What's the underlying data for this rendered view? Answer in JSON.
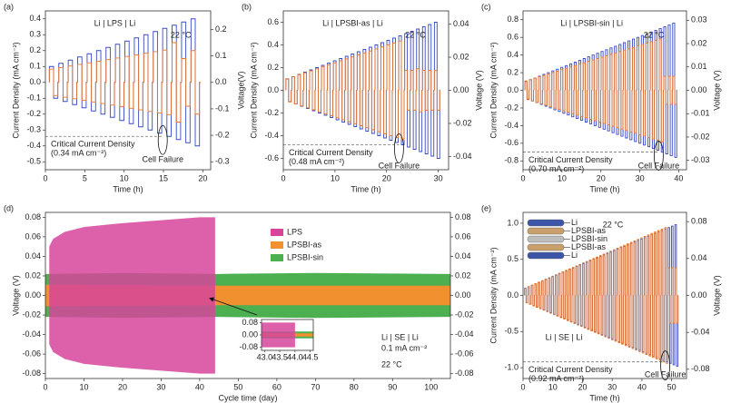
{
  "chart_data": [
    {
      "type": "line",
      "panel_label": "(a)",
      "title": "Li | LPS | Li",
      "temperature": "22 °C",
      "x_label": "Time (h)",
      "y_label": "Current Density (mA cm⁻²)",
      "y2_label": "Voltage(V)",
      "annotations": [
        "Critical Current Density",
        "(0.34 mA cm⁻²)",
        "Cell Failure"
      ],
      "reference_line": -0.34,
      "x": [
        0.5,
        1.7,
        2.9,
        4.1,
        5.3,
        6.5,
        7.7,
        8.9,
        10.1,
        11.3,
        12.5,
        13.7,
        14.9,
        16.1,
        17.3,
        18.5
      ],
      "series": [
        {
          "color": "#3949c4",
          "values": [
            0.1,
            0.12,
            0.14,
            0.16,
            0.18,
            0.2,
            0.22,
            0.24,
            0.26,
            0.28,
            0.3,
            0.32,
            0.34,
            0.36,
            0.38,
            0.4
          ]
        },
        {
          "color": "#e8762c",
          "axis": "y2",
          "values": [
            0.05,
            0.056,
            0.062,
            0.068,
            0.074,
            0.08,
            0.086,
            0.092,
            0.098,
            0.104,
            0.11,
            0.116,
            0.122,
            0.15,
            0.09,
            0.12
          ]
        }
      ],
      "xlim": [
        0,
        21
      ],
      "xticks": [
        0,
        5,
        10,
        15,
        20
      ],
      "ylim": [
        -0.55,
        0.45
      ],
      "yticks": [
        -0.5,
        -0.4,
        -0.3,
        -0.2,
        -0.1,
        {
          "value": 0,
          "label": "0.0"
        },
        0.1,
        0.2,
        0.3,
        0.4
      ],
      "y2lim": [
        -0.33,
        0.27
      ],
      "y2ticks": [
        -0.3,
        -0.2,
        -0.1,
        {
          "value": 0,
          "label": "0.0"
        },
        0.1,
        0.2
      ]
    },
    {
      "type": "line",
      "panel_label": "(b)",
      "title": "Li | LPSBI-as | Li",
      "temperature": "22 °C",
      "x_label": "Time (h)",
      "y_label": "Current Density (mA cm⁻²)",
      "y2_label": "Voltage (V)",
      "annotations": [
        "Critical Current Density",
        "(0.48 mA cm⁻²)",
        "Cell Failure"
      ],
      "reference_line": -0.48,
      "x": [
        0.5,
        1.65,
        2.8,
        3.95,
        5.1,
        6.25,
        7.4,
        8.55,
        9.7,
        10.85,
        12,
        13.15,
        14.3,
        15.45,
        16.6,
        17.75,
        18.9,
        20.05,
        21.2,
        22.35,
        23.5,
        24.65,
        25.8,
        26.95,
        28.1,
        29.25
      ],
      "series": [
        {
          "color": "#3949c4",
          "values": [
            0.1,
            0.12,
            0.14,
            0.16,
            0.18,
            0.2,
            0.22,
            0.24,
            0.26,
            0.28,
            0.3,
            0.32,
            0.34,
            0.36,
            0.38,
            0.4,
            0.42,
            0.44,
            0.46,
            0.48,
            0.5,
            0.52,
            0.54,
            0.56,
            0.58,
            0.6
          ]
        },
        {
          "color": "#e8762c",
          "axis": "y2",
          "values": [
            0.007,
            0.0082,
            0.0094,
            0.0106,
            0.0118,
            0.013,
            0.0142,
            0.0154,
            0.0166,
            0.0178,
            0.019,
            0.0202,
            0.0214,
            0.0226,
            0.0238,
            0.025,
            0.0262,
            0.0274,
            0.0286,
            0.0298,
            0.012,
            0.012,
            0.013,
            0.012,
            0.012,
            0.012
          ]
        }
      ],
      "xlim": [
        0,
        32
      ],
      "xticks": [
        0,
        10,
        20,
        30
      ],
      "ylim": [
        -0.7,
        0.7
      ],
      "yticks": [
        -0.6,
        -0.4,
        -0.2,
        {
          "value": 0,
          "label": "0.0"
        },
        0.2,
        0.4,
        0.6
      ],
      "y2lim": [
        -0.048,
        0.048
      ],
      "y2ticks": [
        -0.04,
        -0.02,
        {
          "value": 0,
          "label": "0.00"
        },
        0.02,
        0.04
      ]
    },
    {
      "type": "line",
      "panel_label": "(c)",
      "title": "Li | LPSBI-sin | Li",
      "temperature": "22 °C",
      "x_label": "Time (h)",
      "y_label": "Current Density (mA cm⁻²)",
      "y2_label": "Voltage (V)",
      "annotations": [
        "Critical Current Density",
        "(0.70 mA cm⁻²)",
        "Cell Failure"
      ],
      "reference_line": -0.7,
      "x": [
        0.5,
        1.65,
        2.8,
        3.95,
        5.1,
        6.25,
        7.4,
        8.55,
        9.7,
        10.85,
        12,
        13.15,
        14.3,
        15.45,
        16.6,
        17.75,
        18.9,
        20.05,
        21.2,
        22.35,
        23.5,
        24.65,
        25.8,
        26.95,
        28.1,
        29.25,
        30.4,
        31.55,
        32.7,
        33.85,
        35,
        36.15,
        37.3,
        38.45
      ],
      "series": [
        {
          "color": "#3949c4",
          "values": [
            0.1,
            0.12,
            0.14,
            0.16,
            0.18,
            0.2,
            0.22,
            0.24,
            0.26,
            0.28,
            0.3,
            0.32,
            0.34,
            0.36,
            0.38,
            0.4,
            0.42,
            0.44,
            0.46,
            0.48,
            0.5,
            0.52,
            0.54,
            0.56,
            0.58,
            0.6,
            0.62,
            0.64,
            0.66,
            0.68,
            0.7,
            0.72,
            0.74,
            0.76
          ]
        },
        {
          "color": "#e8762c",
          "axis": "y2",
          "values": [
            0.004,
            0.0046,
            0.0052,
            0.0058,
            0.0064,
            0.007,
            0.0076,
            0.0082,
            0.0088,
            0.0094,
            0.01,
            0.0106,
            0.0112,
            0.0118,
            0.0124,
            0.013,
            0.0136,
            0.0142,
            0.0148,
            0.0154,
            0.016,
            0.0166,
            0.0172,
            0.0178,
            0.0184,
            0.019,
            0.0196,
            0.0202,
            0.0208,
            0.0214,
            0.022,
            0.006,
            0.006,
            0.006
          ]
        }
      ],
      "xlim": [
        0,
        42
      ],
      "xticks": [
        0,
        10,
        20,
        30,
        40
      ],
      "ylim": [
        -0.9,
        0.9
      ],
      "yticks": [
        -0.8,
        -0.6,
        -0.4,
        -0.2,
        {
          "value": 0,
          "label": "0.0"
        },
        0.2,
        0.4,
        0.6,
        0.8
      ],
      "y2lim": [
        -0.034,
        0.034
      ],
      "y2ticks": [
        -0.03,
        -0.02,
        -0.01,
        {
          "value": 0,
          "label": "0.00"
        },
        0.01,
        0.02,
        0.03
      ]
    },
    {
      "type": "area",
      "panel_label": "(d)",
      "x_label": "Cycle time (day)",
      "y_label": "Voltage (V)",
      "annotations": [
        "Li | SE | Li",
        "0.1 mA cm⁻²",
        "22 °C"
      ],
      "series": [
        {
          "name": "LPSBI-sin",
          "color": "#4caf50",
          "x": [
            0,
            20,
            45,
            70,
            105
          ],
          "values": [
            0.022,
            0.023,
            0.022,
            0.023,
            0.022
          ]
        },
        {
          "name": "LPSBI-as",
          "color": "#f0902f",
          "x": [
            0,
            45,
            105
          ],
          "values": [
            0.011,
            0.01,
            0.01
          ]
        },
        {
          "name": "LPS",
          "color": "#d6459b",
          "x": [
            1,
            2,
            5,
            10,
            20,
            30,
            40,
            44
          ],
          "values": [
            0.05,
            0.058,
            0.065,
            0.07,
            0.074,
            0.077,
            0.08,
            0.08
          ]
        }
      ],
      "xlim": [
        0,
        105
      ],
      "xticks": [
        0,
        10,
        20,
        30,
        40,
        50,
        60,
        70,
        80,
        90,
        100
      ],
      "ylim": [
        -0.085,
        0.085
      ],
      "yticks": [
        -0.08,
        -0.06,
        -0.04,
        -0.02,
        {
          "value": 0,
          "label": "0.00"
        },
        0.02,
        0.04,
        0.06,
        0.08
      ],
      "y2lim": [
        -0.085,
        0.085
      ],
      "y2ticks": [
        -0.08,
        -0.06,
        -0.04,
        -0.02,
        {
          "value": 0,
          "label": "0.00"
        },
        0.02,
        0.04,
        0.06,
        0.08
      ],
      "inset": {
        "xlim": [
          42.9,
          44.6
        ],
        "xticks": [
          {
            "value": 43,
            "label": "43.0"
          },
          43.5,
          {
            "value": 44,
            "label": "44.0"
          },
          44.5
        ],
        "ylim": [
          -0.1,
          0.1
        ],
        "yticks": [
          -0.08,
          {
            "value": 0,
            "label": "0.00"
          },
          0.08
        ]
      }
    },
    {
      "type": "line",
      "panel_label": "(e)",
      "title": "Li | SE | Li",
      "temperature": "22 °C",
      "x_label": "Time (h)",
      "y_label": "Current Density (mA cm⁻²)",
      "y2_label": "Voltage (V)",
      "annotations": [
        "Critical Current Density",
        "(0.92 mA cm⁻²)",
        "Cell Failure"
      ],
      "reference_line": -0.92,
      "schematic_labels": [
        "Li",
        "LPSBI-as",
        "LPSBI-sin",
        "LPSBI-as",
        "Li"
      ],
      "x": [
        0.5,
        1.65,
        2.8,
        3.95,
        5.1,
        6.25,
        7.4,
        8.55,
        9.7,
        10.85,
        12,
        13.15,
        14.3,
        15.45,
        16.6,
        17.75,
        18.9,
        20.05,
        21.2,
        22.35,
        23.5,
        24.65,
        25.8,
        26.95,
        28.1,
        29.25,
        30.4,
        31.55,
        32.7,
        33.85,
        35,
        36.15,
        37.3,
        38.45,
        39.6,
        40.75,
        41.9,
        43.05,
        44.2,
        45.35,
        46.5,
        47.65,
        48.8,
        49.95,
        51.1
      ],
      "series": [
        {
          "color": "#3949c4",
          "values": [
            0.1,
            0.12,
            0.14,
            0.16,
            0.18,
            0.2,
            0.22,
            0.24,
            0.26,
            0.28,
            0.3,
            0.32,
            0.34,
            0.36,
            0.38,
            0.4,
            0.42,
            0.44,
            0.46,
            0.48,
            0.5,
            0.52,
            0.54,
            0.56,
            0.58,
            0.6,
            0.62,
            0.64,
            0.66,
            0.68,
            0.7,
            0.72,
            0.74,
            0.76,
            0.78,
            0.8,
            0.82,
            0.84,
            0.86,
            0.88,
            0.9,
            0.92,
            0.94,
            0.96,
            0.98
          ]
        },
        {
          "color": "#e8762c",
          "axis": "y2",
          "values": [
            0.008,
            0.0096,
            0.0112,
            0.0128,
            0.0144,
            0.016,
            0.0176,
            0.0192,
            0.0208,
            0.0224,
            0.024,
            0.0256,
            0.0272,
            0.0288,
            0.0304,
            0.032,
            0.0336,
            0.0352,
            0.0368,
            0.0384,
            0.04,
            0.0416,
            0.0432,
            0.0448,
            0.0464,
            0.048,
            0.0496,
            0.0512,
            0.0528,
            0.0544,
            0.056,
            0.0576,
            0.0592,
            0.0608,
            0.0624,
            0.064,
            0.0656,
            0.0672,
            0.0688,
            0.0704,
            0.072,
            0.0736,
            0.03,
            0.03,
            0.03
          ]
        }
      ],
      "xlim": [
        0,
        55
      ],
      "xticks": [
        0,
        10,
        20,
        30,
        40,
        50
      ],
      "ylim": [
        -1.15,
        1.15
      ],
      "yticks": [
        {
          "value": -1,
          "label": "-1.0"
        },
        -0.5,
        {
          "value": 0,
          "label": "0.0"
        },
        0.5,
        {
          "value": 1,
          "label": "1.0"
        }
      ],
      "y2lim": [
        -0.09,
        0.09
      ],
      "y2ticks": [
        -0.08,
        -0.04,
        {
          "value": 0,
          "label": "0.00"
        },
        0.04,
        0.08
      ]
    }
  ]
}
